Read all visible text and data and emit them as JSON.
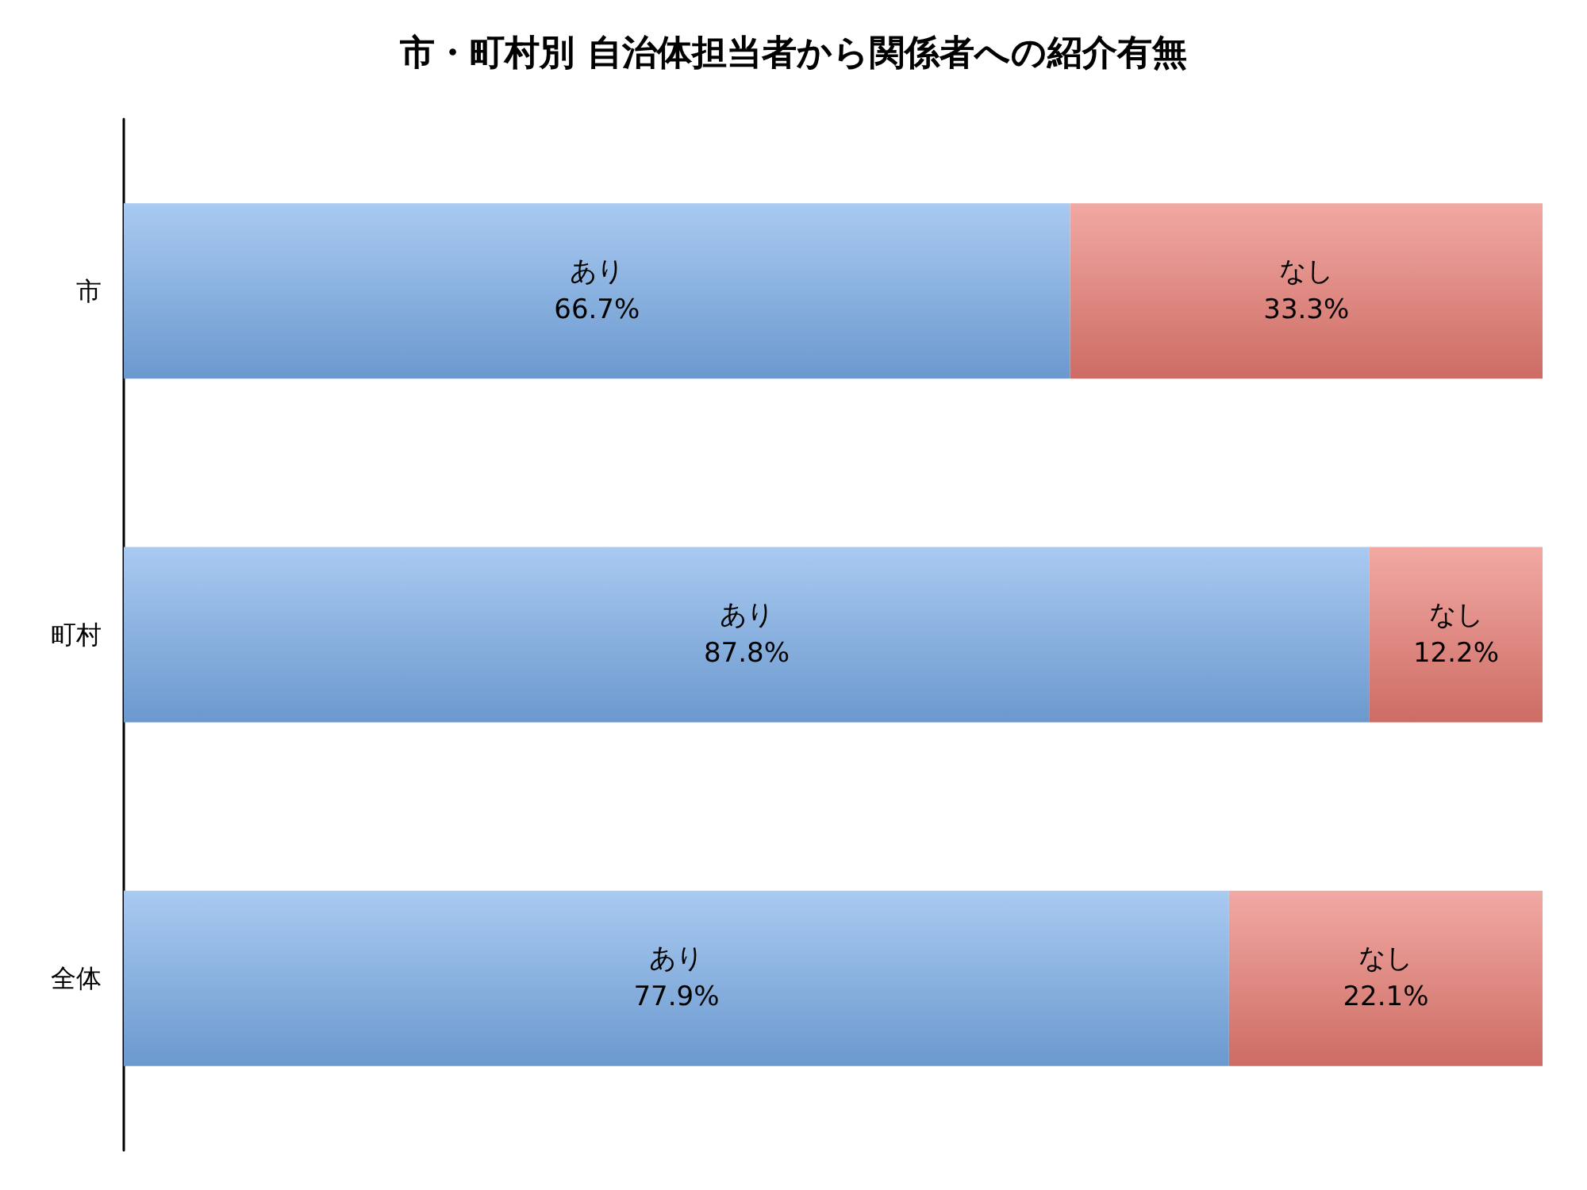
{
  "chart_data": {
    "type": "bar",
    "title": "市・町村別 自治体担当者から関係者への紹介有無",
    "orientation": "horizontal",
    "stacked": true,
    "categories": [
      "市",
      "町村",
      "全体"
    ],
    "xlim": [
      0,
      100
    ],
    "tick_labels": "y",
    "grid": false,
    "legend": false,
    "series": [
      {
        "name": "あり",
        "color": "#7aaeea",
        "values": [
          66.7,
          87.8,
          77.9
        ],
        "value_labels": [
          "66.7%",
          "87.8%",
          "77.9%"
        ]
      },
      {
        "name": "なし",
        "color": "#e97b72",
        "values": [
          33.3,
          12.2,
          22.1
        ],
        "value_labels": [
          "33.3%",
          "12.2%",
          "22.1%"
        ]
      }
    ]
  }
}
